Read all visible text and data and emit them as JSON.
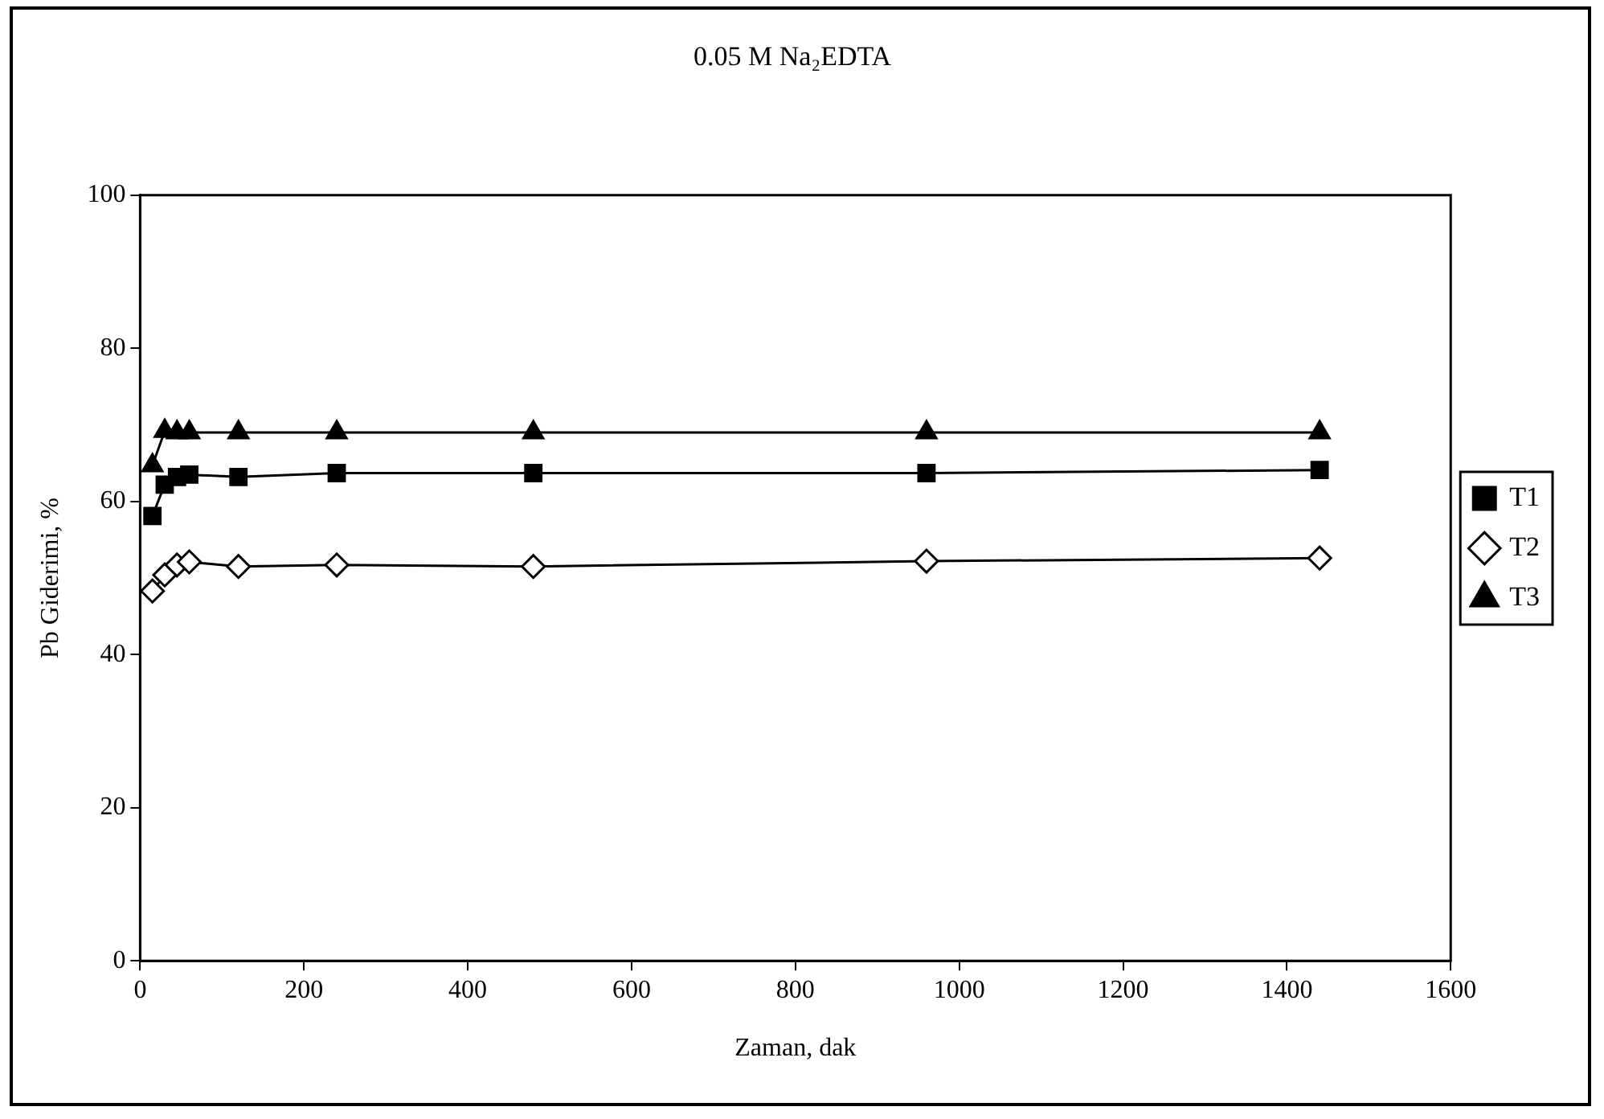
{
  "chart_data": {
    "type": "line",
    "title": "0.05 M Na₂EDTA",
    "xlabel": "Zaman, dak",
    "ylabel": "Pb Giderimi, %",
    "x": [
      15,
      30,
      45,
      60,
      120,
      240,
      480,
      960,
      1440
    ],
    "xlim": [
      0,
      1600
    ],
    "xticks": [
      0,
      200,
      400,
      600,
      800,
      1000,
      1200,
      1400,
      1600
    ],
    "ylim": [
      0,
      100
    ],
    "yticks": [
      0,
      20,
      40,
      60,
      80,
      100
    ],
    "grid": false,
    "legend": "right",
    "line_style": "solid",
    "series": [
      {
        "name": "T1",
        "color": "#000000",
        "marker": "square",
        "values": [
          58.1,
          62.2,
          63.2,
          63.5,
          63.2,
          63.7,
          63.7,
          63.7,
          64.1
        ]
      },
      {
        "name": "T2",
        "color": "#000000",
        "marker": "diamond",
        "values": [
          48.3,
          50.4,
          51.7,
          52.1,
          51.5,
          51.7,
          51.5,
          52.2,
          52.6
        ]
      },
      {
        "name": "T3",
        "color": "#000000",
        "marker": "triangle",
        "values": [
          64.7,
          69.2,
          69,
          69,
          69,
          69,
          69,
          69,
          69
        ]
      }
    ]
  }
}
